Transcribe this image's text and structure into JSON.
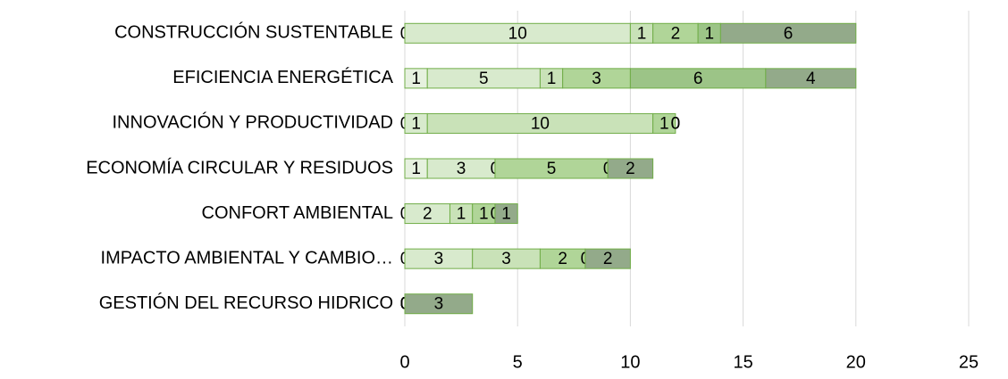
{
  "chart_data": {
    "type": "bar",
    "orientation": "horizontal",
    "stacked": true,
    "categories": [
      "CONSTRUCCIÓN SUSTENTABLE",
      "EFICIENCIA ENERGÉTICA",
      "INNOVACIÓN Y PRODUCTIVIDAD",
      "ECONOMÍA CIRCULAR Y RESIDUOS",
      "CONFORT AMBIENTAL",
      "IMPACTO AMBIENTAL Y CAMBIO…",
      "GESTIÓN DEL RECURSO HIDRICO"
    ],
    "series": [
      {
        "color": "#e6f1df",
        "values": [
          0,
          1,
          0,
          1,
          0,
          0,
          0
        ]
      },
      {
        "color": "#d8eacd",
        "values": [
          10,
          5,
          1,
          3,
          2,
          3,
          0
        ]
      },
      {
        "color": "#c9e2b8",
        "values": [
          1,
          1,
          10,
          0,
          1,
          3,
          0
        ]
      },
      {
        "color": "#b0d598",
        "values": [
          2,
          3,
          1,
          5,
          1,
          2,
          0
        ]
      },
      {
        "color": "#9cc487",
        "values": [
          1,
          6,
          0,
          0,
          0,
          0,
          0
        ]
      },
      {
        "color": "#93aa8a",
        "values": [
          6,
          4,
          0,
          2,
          1,
          2,
          3
        ]
      }
    ],
    "xlim": [
      0,
      25
    ],
    "xticks": [
      0,
      5,
      10,
      15,
      20,
      25
    ],
    "grid": true
  }
}
